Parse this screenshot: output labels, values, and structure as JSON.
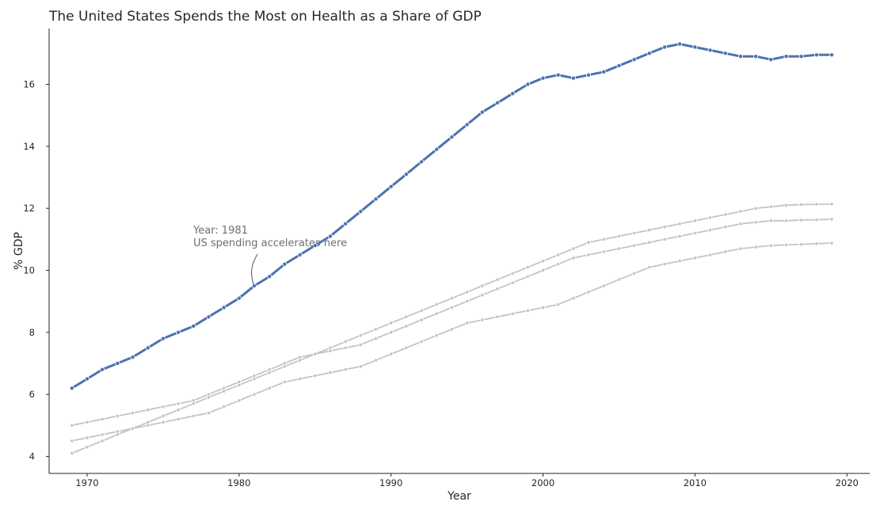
{
  "chart_data": {
    "type": "line",
    "title": "The United States Spends the Most on Health as a Share of GDP",
    "xlabel": "Year",
    "ylabel": "% GDP",
    "xlim": [
      1967.5,
      2021.5
    ],
    "ylim": [
      3.45,
      17.8
    ],
    "xticks": [
      1970,
      1980,
      1990,
      2000,
      2010,
      2020
    ],
    "yticks": [
      4,
      6,
      8,
      10,
      12,
      14,
      16
    ],
    "grid": false,
    "legend": "none",
    "x": [
      1969,
      1970,
      1971,
      1972,
      1973,
      1974,
      1975,
      1976,
      1977,
      1978,
      1979,
      1980,
      1981,
      1982,
      1983,
      1984,
      1985,
      1986,
      1987,
      1988,
      1989,
      1990,
      1991,
      1992,
      1993,
      1994,
      1995,
      1996,
      1997,
      1998,
      1999,
      2000,
      2001,
      2002,
      2003,
      2004,
      2005,
      2006,
      2007,
      2008,
      2009,
      2010,
      2011,
      2012,
      2013,
      2014,
      2015,
      2016,
      2017,
      2018,
      2019
    ],
    "series": [
      {
        "color": "#4c72b0",
        "emphasis": true,
        "values": [
          6.2,
          6.5,
          6.8,
          7.0,
          7.2,
          7.5,
          7.8,
          8.0,
          8.2,
          8.5,
          8.8,
          9.1,
          9.5,
          9.8,
          10.2,
          10.5,
          10.8,
          11.1,
          11.5,
          11.9,
          12.3,
          12.7,
          13.1,
          13.5,
          13.9,
          14.3,
          14.7,
          15.1,
          15.4,
          15.7,
          16.0,
          16.2,
          16.3,
          16.2,
          16.3,
          16.4,
          16.6,
          16.8,
          17.0,
          17.2,
          17.3,
          17.2,
          17.1,
          17.0,
          16.9,
          16.9,
          16.8,
          16.9,
          16.9,
          16.95,
          16.95
        ]
      },
      {
        "color": "#c4c4c4",
        "values": [
          5.0,
          5.1,
          5.2,
          5.3,
          5.4,
          5.5,
          5.6,
          5.7,
          5.8,
          6.0,
          6.2,
          6.4,
          6.6,
          6.8,
          7.0,
          7.2,
          7.3,
          7.4,
          7.5,
          7.6,
          7.8,
          8.0,
          8.2,
          8.4,
          8.6,
          8.8,
          9.0,
          9.2,
          9.4,
          9.6,
          9.8,
          10.0,
          10.2,
          10.4,
          10.5,
          10.6,
          10.7,
          10.8,
          10.9,
          11.0,
          11.1,
          11.2,
          11.3,
          11.4,
          11.5,
          11.55,
          11.6,
          11.6,
          11.62,
          11.63,
          11.65
        ]
      },
      {
        "color": "#c4c4c4",
        "values": [
          4.5,
          4.6,
          4.7,
          4.8,
          4.9,
          5.0,
          5.1,
          5.2,
          5.3,
          5.4,
          5.6,
          5.8,
          6.0,
          6.2,
          6.4,
          6.5,
          6.6,
          6.7,
          6.8,
          6.9,
          7.1,
          7.3,
          7.5,
          7.7,
          7.9,
          8.1,
          8.3,
          8.4,
          8.5,
          8.6,
          8.7,
          8.8,
          8.9,
          9.1,
          9.3,
          9.5,
          9.7,
          9.9,
          10.1,
          10.2,
          10.3,
          10.4,
          10.5,
          10.6,
          10.7,
          10.75,
          10.8,
          10.82,
          10.84,
          10.86,
          10.88
        ]
      },
      {
        "color": "#c4c4c4",
        "values": [
          4.1,
          4.3,
          4.5,
          4.7,
          4.9,
          5.1,
          5.3,
          5.5,
          5.7,
          5.9,
          6.1,
          6.3,
          6.5,
          6.7,
          6.9,
          7.1,
          7.3,
          7.5,
          7.7,
          7.9,
          8.1,
          8.3,
          8.5,
          8.7,
          8.9,
          9.1,
          9.3,
          9.5,
          9.7,
          9.9,
          10.1,
          10.3,
          10.5,
          10.7,
          10.9,
          11.0,
          11.1,
          11.2,
          11.3,
          11.4,
          11.5,
          11.6,
          11.7,
          11.8,
          11.9,
          12.0,
          12.05,
          12.1,
          12.12,
          12.13,
          12.14
        ]
      }
    ],
    "annotation": {
      "lines": [
        "Year: 1981",
        "US spending accelerates here"
      ],
      "target": {
        "x": 1981,
        "y": 9.5
      }
    }
  }
}
